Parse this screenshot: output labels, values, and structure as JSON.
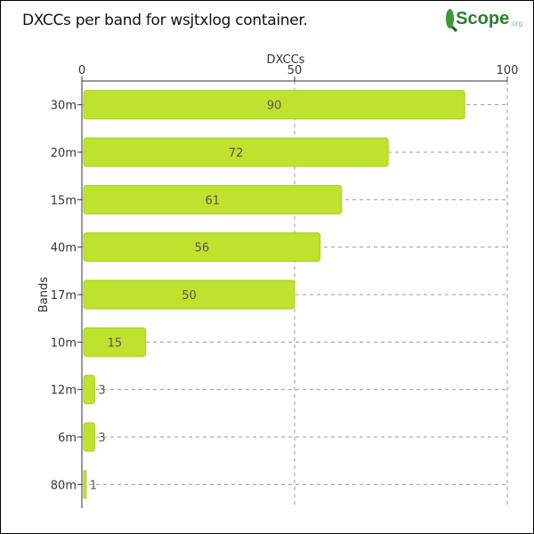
{
  "page": {
    "title": "DXCCs per band for wsjtxlog container.",
    "logo": {
      "name": "Scope",
      "suffix": ".org",
      "icon": "magnifier-globe-icon"
    }
  },
  "chart_data": {
    "type": "bar",
    "orientation": "horizontal",
    "title": "DXCCs per band for wsjtxlog container.",
    "xlabel": "DXCCs",
    "ylabel": "Bands",
    "xlim": [
      0,
      100
    ],
    "xticks": [
      0,
      50,
      100
    ],
    "categories": [
      "30m",
      "20m",
      "15m",
      "40m",
      "17m",
      "10m",
      "12m",
      "6m",
      "80m"
    ],
    "values": [
      90,
      72,
      61,
      56,
      50,
      15,
      3,
      3,
      1
    ],
    "data_labels": true,
    "grid": true,
    "x_axis_position": "top",
    "colors": {
      "bar": "#bfe22f",
      "bar_stroke": "#a9cc22",
      "grid": "#999999",
      "axis": "#333333"
    }
  }
}
